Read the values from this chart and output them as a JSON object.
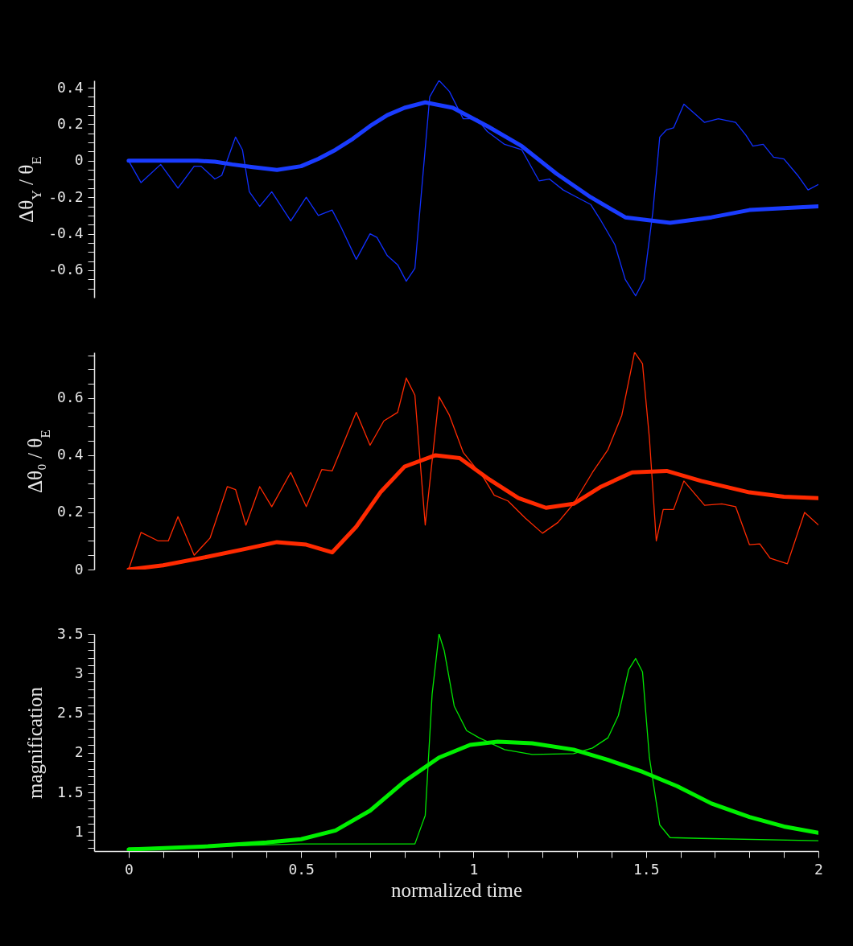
{
  "chart_data": [
    {
      "type": "line",
      "ylabel": "Δθ$_{Y}$ / θ$_{E}$",
      "xlim": [
        -0.1,
        2
      ],
      "ylim": [
        -0.75,
        0.44
      ],
      "tick_labels": "y",
      "grid": false,
      "yticks": [
        {
          "value": -0.7,
          "label": null
        },
        {
          "value": -0.65,
          "label": null
        },
        -0.6,
        {
          "value": -0.55,
          "label": null
        },
        {
          "value": -0.5,
          "label": null
        },
        {
          "value": -0.45,
          "label": null
        },
        -0.4,
        {
          "value": -0.35,
          "label": null
        },
        {
          "value": -0.3,
          "label": null
        },
        {
          "value": -0.25,
          "label": null
        },
        -0.2,
        {
          "value": -0.15,
          "label": null
        },
        {
          "value": -0.1,
          "label": null
        },
        {
          "value": -0.05,
          "label": null
        },
        0,
        {
          "value": 0.05,
          "label": null
        },
        {
          "value": 0.1,
          "label": null
        },
        {
          "value": 0.15,
          "label": null
        },
        0.2,
        {
          "value": 0.25,
          "label": null
        },
        {
          "value": 0.3,
          "label": null
        },
        {
          "value": 0.35,
          "label": null
        },
        0.4
      ],
      "series": [
        {
          "color": "#1030ff",
          "x": [
            0,
            0.036,
            0.093,
            0.143,
            0.19,
            0.21,
            0.25,
            0.27,
            0.31,
            0.33,
            0.35,
            0.38,
            0.415,
            0.47,
            0.515,
            0.55,
            0.59,
            0.615,
            0.66,
            0.7,
            0.72,
            0.75,
            0.78,
            0.805,
            0.83,
            0.85,
            0.873,
            0.9,
            0.93,
            0.97,
            1.01,
            1.04,
            1.09,
            1.14,
            1.19,
            1.22,
            1.26,
            1.3,
            1.34,
            1.37,
            1.41,
            1.44,
            1.47,
            1.495,
            1.52,
            1.54,
            1.56,
            1.58,
            1.61,
            1.64,
            1.67,
            1.71,
            1.76,
            1.79,
            1.81,
            1.84,
            1.87,
            1.9,
            1.94,
            1.97,
            2
          ],
          "values": [
            0,
            -0.12,
            -0.02,
            -0.15,
            -0.03,
            -0.03,
            -0.1,
            -0.08,
            0.13,
            0.06,
            -0.17,
            -0.25,
            -0.17,
            -0.33,
            -0.2,
            -0.3,
            -0.27,
            -0.36,
            -0.54,
            -0.4,
            -0.42,
            -0.52,
            -0.57,
            -0.66,
            -0.59,
            -0.15,
            0.35,
            0.44,
            0.38,
            0.23,
            0.23,
            0.16,
            0.09,
            0.06,
            -0.11,
            -0.1,
            -0.16,
            -0.2,
            -0.24,
            -0.33,
            -0.46,
            -0.65,
            -0.74,
            -0.65,
            -0.28,
            0.13,
            0.17,
            0.18,
            0.31,
            0.26,
            0.21,
            0.23,
            0.21,
            0.14,
            0.08,
            0.09,
            0.02,
            0.01,
            -0.08,
            -0.16,
            -0.13
          ]
        },
        {
          "color": "#1a3cff",
          "x": [
            0,
            0.1,
            0.2,
            0.25,
            0.3,
            0.36,
            0.43,
            0.5,
            0.55,
            0.6,
            0.65,
            0.7,
            0.75,
            0.8,
            0.86,
            0.94,
            1.04,
            1.14,
            1.24,
            1.34,
            1.44,
            1.57,
            1.69,
            1.8,
            1.9,
            2
          ],
          "values": [
            0,
            0,
            0,
            -0.005,
            -0.02,
            -0.035,
            -0.05,
            -0.03,
            0.01,
            0.06,
            0.12,
            0.19,
            0.25,
            0.29,
            0.32,
            0.29,
            0.19,
            0.08,
            -0.07,
            -0.2,
            -0.31,
            -0.34,
            -0.31,
            -0.27,
            -0.26,
            -0.25
          ]
        }
      ]
    },
    {
      "type": "line",
      "ylabel": "Δθ₀ / θ$_{E}$",
      "xlim": [
        -0.1,
        2
      ],
      "ylim": [
        0,
        0.76
      ],
      "tick_labels": "y",
      "grid": false,
      "yticks": [
        0,
        {
          "value": 0.05,
          "label": null
        },
        {
          "value": 0.1,
          "label": null
        },
        {
          "value": 0.15,
          "label": null
        },
        0.2,
        {
          "value": 0.25,
          "label": null
        },
        {
          "value": 0.3,
          "label": null
        },
        {
          "value": 0.35,
          "label": null
        },
        0.4,
        {
          "value": 0.45,
          "label": null
        },
        {
          "value": 0.5,
          "label": null
        },
        {
          "value": 0.55,
          "label": null
        },
        0.6,
        {
          "value": 0.65,
          "label": null
        },
        {
          "value": 0.7,
          "label": null
        },
        {
          "value": 0.75,
          "label": null
        }
      ],
      "series": [
        {
          "color": "#ff2a00",
          "x": [
            0,
            0.036,
            0.086,
            0.115,
            0.143,
            0.19,
            0.236,
            0.286,
            0.31,
            0.34,
            0.38,
            0.415,
            0.47,
            0.515,
            0.56,
            0.59,
            0.66,
            0.7,
            0.74,
            0.78,
            0.805,
            0.83,
            0.86,
            0.9,
            0.93,
            0.97,
            1.03,
            1.06,
            1.1,
            1.15,
            1.2,
            1.245,
            1.29,
            1.345,
            1.39,
            1.43,
            1.467,
            1.49,
            1.51,
            1.53,
            1.55,
            1.58,
            1.61,
            1.67,
            1.72,
            1.76,
            1.8,
            1.83,
            1.86,
            1.91,
            1.96,
            2
          ],
          "values": [
            0,
            0.13,
            0.1,
            0.1,
            0.185,
            0.05,
            0.11,
            0.29,
            0.28,
            0.155,
            0.29,
            0.22,
            0.34,
            0.22,
            0.35,
            0.345,
            0.55,
            0.435,
            0.52,
            0.55,
            0.67,
            0.61,
            0.156,
            0.605,
            0.54,
            0.41,
            0.32,
            0.26,
            0.24,
            0.18,
            0.127,
            0.165,
            0.23,
            0.34,
            0.42,
            0.54,
            0.76,
            0.72,
            0.46,
            0.1,
            0.21,
            0.21,
            0.31,
            0.225,
            0.23,
            0.22,
            0.087,
            0.09,
            0.04,
            0.02,
            0.2,
            0.156
          ]
        },
        {
          "color": "#ff2a00",
          "x": [
            0,
            0.1,
            0.23,
            0.33,
            0.43,
            0.515,
            0.59,
            0.66,
            0.73,
            0.8,
            0.89,
            0.96,
            1.04,
            1.13,
            1.21,
            1.29,
            1.37,
            1.46,
            1.56,
            1.66,
            1.8,
            1.9,
            2
          ],
          "values": [
            0,
            0.015,
            0.045,
            0.07,
            0.096,
            0.087,
            0.06,
            0.15,
            0.27,
            0.36,
            0.4,
            0.39,
            0.32,
            0.25,
            0.216,
            0.23,
            0.29,
            0.34,
            0.345,
            0.31,
            0.27,
            0.255,
            0.25
          ]
        }
      ]
    },
    {
      "type": "line",
      "xlabel": "normalized time",
      "ylabel": "magnification",
      "xlim": [
        -0.1,
        2
      ],
      "ylim": [
        0.76,
        3.5
      ],
      "grid": false,
      "xticks": [
        0,
        {
          "value": 0.1,
          "label": null
        },
        {
          "value": 0.2,
          "label": null
        },
        {
          "value": 0.3,
          "label": null
        },
        {
          "value": 0.4,
          "label": null
        },
        0.5,
        {
          "value": 0.6,
          "label": null
        },
        {
          "value": 0.7,
          "label": null
        },
        {
          "value": 0.8,
          "label": null
        },
        {
          "value": 0.9,
          "label": null
        },
        1,
        {
          "value": 1.1,
          "label": null
        },
        {
          "value": 1.2,
          "label": null
        },
        {
          "value": 1.3,
          "label": null
        },
        {
          "value": 1.4,
          "label": null
        },
        1.5,
        {
          "value": 1.6,
          "label": null
        },
        {
          "value": 1.7,
          "label": null
        },
        {
          "value": 1.8,
          "label": null
        },
        {
          "value": 1.9,
          "label": null
        },
        2
      ],
      "yticks": [
        {
          "value": 0.8,
          "label": null
        },
        {
          "value": 0.9,
          "label": null
        },
        1,
        {
          "value": 1.1,
          "label": null
        },
        {
          "value": 1.2,
          "label": null
        },
        {
          "value": 1.3,
          "label": null
        },
        {
          "value": 1.4,
          "label": null
        },
        1.5,
        {
          "value": 1.6,
          "label": null
        },
        {
          "value": 1.7,
          "label": null
        },
        {
          "value": 1.8,
          "label": null
        },
        {
          "value": 1.9,
          "label": null
        },
        2,
        {
          "value": 2.1,
          "label": null
        },
        {
          "value": 2.2,
          "label": null
        },
        {
          "value": 2.3,
          "label": null
        },
        {
          "value": 2.4,
          "label": null
        },
        2.5,
        {
          "value": 2.6,
          "label": null
        },
        {
          "value": 2.7,
          "label": null
        },
        {
          "value": 2.8,
          "label": null
        },
        {
          "value": 2.9,
          "label": null
        },
        3,
        {
          "value": 3.1,
          "label": null
        },
        {
          "value": 3.2,
          "label": null
        },
        {
          "value": 3.3,
          "label": null
        },
        {
          "value": 3.4,
          "label": null
        },
        3.5
      ],
      "series": [
        {
          "color": "#00e600",
          "x": [
            0,
            0.25,
            0.5,
            0.83,
            0.86,
            0.88,
            0.9,
            0.915,
            0.944,
            0.98,
            1.016,
            1.09,
            1.17,
            1.29,
            1.345,
            1.39,
            1.42,
            1.45,
            1.47,
            1.49,
            1.51,
            1.54,
            1.57,
            1.66,
            2
          ],
          "values": [
            0.8,
            0.82,
            0.85,
            0.85,
            1.21,
            2.74,
            3.5,
            3.29,
            2.59,
            2.28,
            2.19,
            2.04,
            1.98,
            1.99,
            2.06,
            2.19,
            2.47,
            3.05,
            3.19,
            3.02,
            1.94,
            1.09,
            0.93,
            0.92,
            0.89
          ]
        },
        {
          "color": "#00f000",
          "x": [
            0,
            0.23,
            0.4,
            0.5,
            0.6,
            0.7,
            0.8,
            0.9,
            0.99,
            1.07,
            1.17,
            1.29,
            1.39,
            1.49,
            1.59,
            1.69,
            1.8,
            1.9,
            2
          ],
          "values": [
            0.78,
            0.82,
            0.87,
            0.91,
            1.02,
            1.27,
            1.64,
            1.94,
            2.1,
            2.14,
            2.12,
            2.04,
            1.91,
            1.76,
            1.58,
            1.36,
            1.19,
            1.07,
            0.99
          ]
        }
      ]
    }
  ]
}
